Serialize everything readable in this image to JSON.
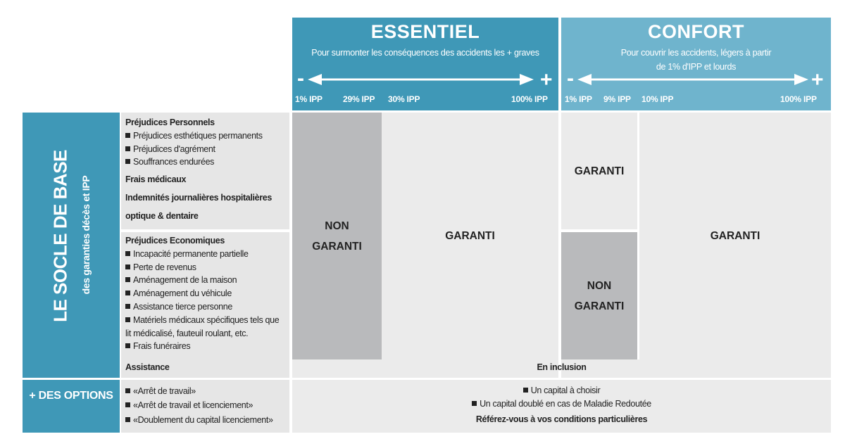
{
  "columns": [
    {
      "title": "ESSENTIEL",
      "subtitle_lines": [
        "Pour surmonter les conséquences des accidents les + graves"
      ],
      "scale_start": "-",
      "scale_end": "+",
      "ticks": [
        "1% IPP",
        "29% IPP",
        "30% IPP",
        "100% IPP"
      ]
    },
    {
      "title": "CONFORT",
      "subtitle_lines": [
        "Pour couvrir les accidents, légers à partir",
        "de 1% d'IPP et lourds"
      ],
      "scale_start": "-",
      "scale_end": "+",
      "ticks": [
        "1% IPP",
        "9% IPP",
        "10% IPP",
        "100% IPP"
      ]
    }
  ],
  "socle": {
    "title": "LE SOCLE DE BASE",
    "subtitle": "des garanties décès et IPP",
    "personal": {
      "heading": "Préjudices Personnels",
      "bullets": [
        "Préjudices esthétiques permanents",
        "Préjudices d'agrément",
        "Souffrances endurées"
      ],
      "headings": [
        "Frais médicaux",
        "Indemnités journalières hospitalières",
        "optique & dentaire"
      ]
    },
    "economic": {
      "heading": "Préjudices Economiques",
      "bullets": [
        "Incapacité permanente partielle",
        "Perte de revenus",
        "Aménagement de la maison",
        "Aménagement du véhicule",
        "Assistance tierce personne",
        "Matériels médicaux spécifiques tels que lit médicalisé, fauteuil roulant, etc.",
        "Frais funéraires"
      ]
    },
    "assistance": "Assistance"
  },
  "cells": {
    "essentiel_low": "NON GARANTI",
    "essentiel_high": "GARANTI",
    "confort_low_personal": "GARANTI",
    "confort_low_economic": "NON GARANTI",
    "confort_high": "GARANTI",
    "assistance": "En inclusion"
  },
  "options": {
    "title": "+ DES OPTIONS",
    "items": [
      "«Arrêt de travail»",
      "«Arrêt de travail et licenciement»",
      "«Doublement du capital licenciement»"
    ],
    "details": [
      "Un capital à choisir",
      "Un capital doublé en cas de Maladie Redoutée"
    ],
    "note": "Référez-vous à vos conditions particulières"
  }
}
